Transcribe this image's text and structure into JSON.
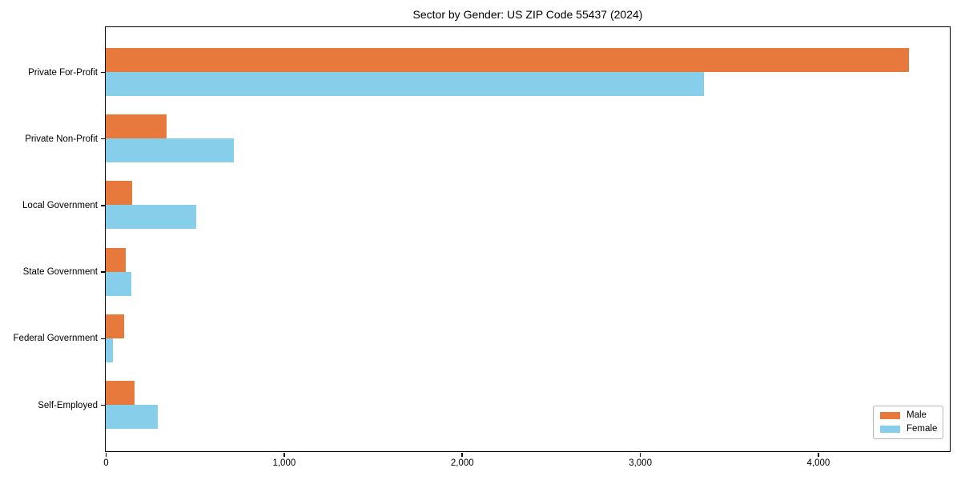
{
  "title": "Sector by Gender: US ZIP Code 55437 (2024)",
  "chart_data": {
    "type": "bar",
    "orientation": "horizontal",
    "title": "Sector by Gender: US ZIP Code 55437 (2024)",
    "xlabel": "",
    "ylabel": "",
    "grid": false,
    "categories": [
      "Private For-Profit",
      "Private Non-Profit",
      "Local Government",
      "State Government",
      "Federal Government",
      "Self-Employed"
    ],
    "series": [
      {
        "name": "Male",
        "color": "#e8793c",
        "values": [
          4510,
          340,
          150,
          110,
          105,
          160
        ]
      },
      {
        "name": "Female",
        "color": "#87ceeb",
        "values": [
          3360,
          720,
          510,
          145,
          40,
          290
        ]
      }
    ],
    "xlim": [
      0,
      4740
    ],
    "xticks": [
      {
        "value": 0,
        "label": "0"
      },
      {
        "value": 1000,
        "label": "1,000"
      },
      {
        "value": 2000,
        "label": "2,000"
      },
      {
        "value": 3000,
        "label": "3,000"
      },
      {
        "value": 4000,
        "label": "4,000"
      }
    ],
    "legend": {
      "position": "lower right"
    }
  }
}
